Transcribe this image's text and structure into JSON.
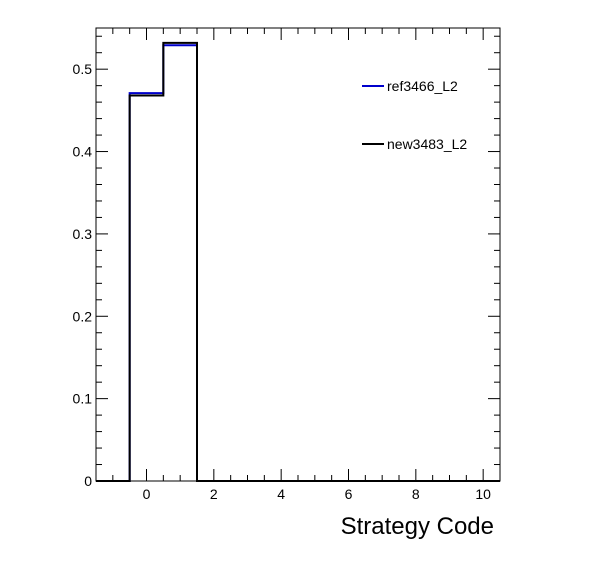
{
  "chart_data": {
    "type": "histogram",
    "title": "",
    "xlabel": "Strategy Code",
    "ylabel": "",
    "xlim": [
      -1.5,
      10.5
    ],
    "ylim": [
      0,
      0.55
    ],
    "x_ticks": [
      0,
      2,
      4,
      6,
      8,
      10
    ],
    "y_ticks": [
      0,
      0.1,
      0.2,
      0.3,
      0.4,
      0.5
    ],
    "y_tick_labels": [
      "0",
      "0.1",
      "0.2",
      "0.3",
      "0.4",
      "0.5"
    ],
    "grid": false,
    "legend_position": "top-right",
    "bin_edges": [
      -1.5,
      -0.5,
      0.5,
      1.5,
      2.5,
      3.5,
      4.5,
      5.5,
      6.5,
      7.5,
      8.5,
      9.5,
      10.5
    ],
    "series": [
      {
        "name": "ref3466_L2",
        "color": "#0000cc",
        "values": [
          0,
          0.471,
          0.529,
          0,
          0,
          0,
          0,
          0,
          0,
          0,
          0,
          0
        ]
      },
      {
        "name": "new3483_L2",
        "color": "#000000",
        "values": [
          0,
          0.468,
          0.532,
          0,
          0,
          0,
          0,
          0,
          0,
          0,
          0,
          0
        ]
      }
    ]
  }
}
